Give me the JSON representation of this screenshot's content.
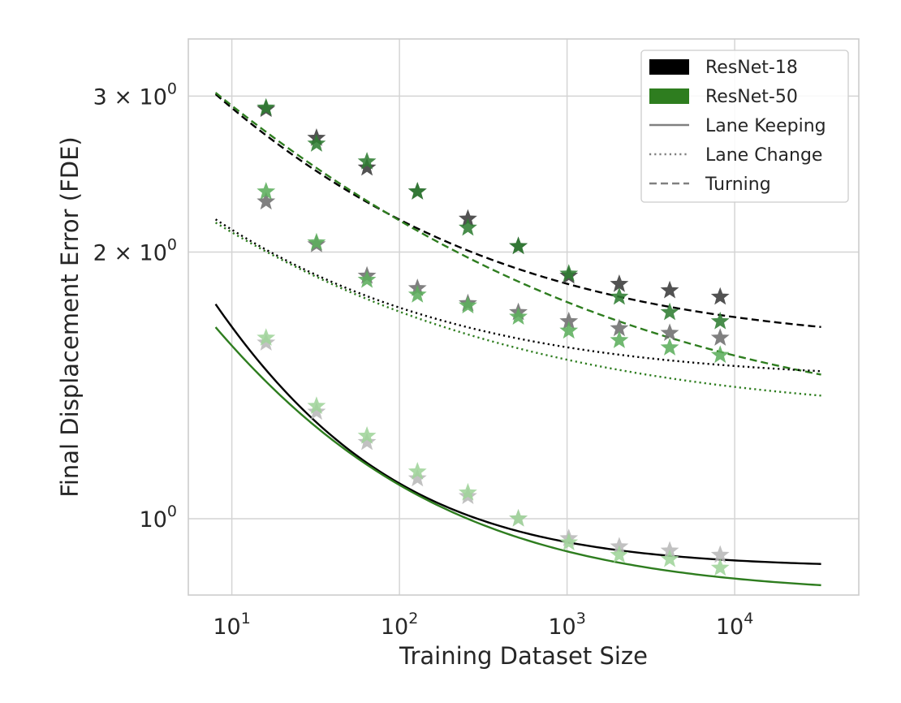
{
  "chart_data": {
    "type": "line",
    "xlabel": "Training Dataset Size",
    "ylabel": "Final Displacement Error (FDE)",
    "x_scale": "log",
    "y_scale": "log",
    "xlim": [
      5.5,
      55000
    ],
    "ylim": [
      0.82,
      3.48
    ],
    "x_ticks": [
      {
        "value": 10,
        "base": "10",
        "exp": "1"
      },
      {
        "value": 100,
        "base": "10",
        "exp": "2"
      },
      {
        "value": 1000,
        "base": "10",
        "exp": "3"
      },
      {
        "value": 10000,
        "base": "10",
        "exp": "4"
      }
    ],
    "y_ticks": [
      {
        "value": 1,
        "coef": "",
        "base": "10",
        "exp": "0"
      },
      {
        "value": 2,
        "coef": "2 × ",
        "base": "10",
        "exp": "0"
      },
      {
        "value": 3,
        "coef": "3 × ",
        "base": "10",
        "exp": "0"
      }
    ],
    "grid": true,
    "legend_position": "top-right",
    "colors": {
      "resnet18": "#000000",
      "resnet50": "#2e7d1f",
      "style_key": "#808080"
    },
    "legend": [
      {
        "label": "ResNet-18",
        "kind": "patch",
        "color": "#000000"
      },
      {
        "label": "ResNet-50",
        "kind": "patch",
        "color": "#2e7d1f"
      },
      {
        "label": "Lane Keeping",
        "kind": "line",
        "dash": "solid",
        "color": "#808080"
      },
      {
        "label": "Lane Change",
        "kind": "line",
        "dash": "dotted",
        "color": "#808080"
      },
      {
        "label": "Turning",
        "kind": "line",
        "dash": "dashed",
        "color": "#808080"
      }
    ],
    "x": [
      16,
      32,
      64,
      128,
      256,
      512,
      1024,
      2048,
      4096,
      8192
    ],
    "series": [
      {
        "model": "ResNet-18",
        "task": "Turning",
        "color": "#000000",
        "dash": "dashed",
        "marker_color": "#3a3a3a",
        "values": [
          2.9,
          2.69,
          2.49,
          2.34,
          2.18,
          2.03,
          1.88,
          1.84,
          1.81,
          1.78
        ],
        "fit": {
          "a": 2.95,
          "b": 0.34,
          "c": 1.56
        }
      },
      {
        "model": "ResNet-50",
        "task": "Turning",
        "color": "#2e7d1f",
        "dash": "dashed",
        "marker_color": "#2f7d32",
        "values": [
          2.91,
          2.65,
          2.53,
          2.34,
          2.13,
          2.03,
          1.89,
          1.78,
          1.71,
          1.67
        ],
        "fit": {
          "a": 3.05,
          "b": 0.26,
          "c": 1.25
        }
      },
      {
        "model": "ResNet-18",
        "task": "Lane Change",
        "color": "#000000",
        "dash": "dotted",
        "marker_color": "#6e6e6e",
        "values": [
          2.28,
          2.04,
          1.88,
          1.82,
          1.75,
          1.71,
          1.67,
          1.64,
          1.62,
          1.6
        ],
        "fit": {
          "a": 1.58,
          "b": 0.36,
          "c": 1.43
        }
      },
      {
        "model": "ResNet-50",
        "task": "Lane Change",
        "color": "#2e7d1f",
        "dash": "dotted",
        "marker_color": "#5cae5c",
        "values": [
          2.34,
          2.05,
          1.86,
          1.79,
          1.74,
          1.69,
          1.63,
          1.59,
          1.56,
          1.53
        ],
        "fit": {
          "a": 1.57,
          "b": 0.29,
          "c": 1.3
        }
      },
      {
        "model": "ResNet-18",
        "task": "Lane Keeping",
        "color": "#000000",
        "dash": "solid",
        "marker_color": "#b8b8b8",
        "values": [
          1.58,
          1.32,
          1.22,
          1.11,
          1.06,
          1.0,
          0.95,
          0.93,
          0.92,
          0.91
        ],
        "fit": {
          "a": 2.72,
          "b": 0.55,
          "c": 0.88
        }
      },
      {
        "model": "ResNet-50",
        "task": "Lane Keeping",
        "color": "#2e7d1f",
        "dash": "solid",
        "marker_color": "#9fd49a",
        "values": [
          1.6,
          1.34,
          1.24,
          1.13,
          1.07,
          1.0,
          0.94,
          0.91,
          0.9,
          0.88
        ],
        "fit": {
          "a": 2.06,
          "b": 0.44,
          "c": 0.82
        }
      }
    ]
  }
}
